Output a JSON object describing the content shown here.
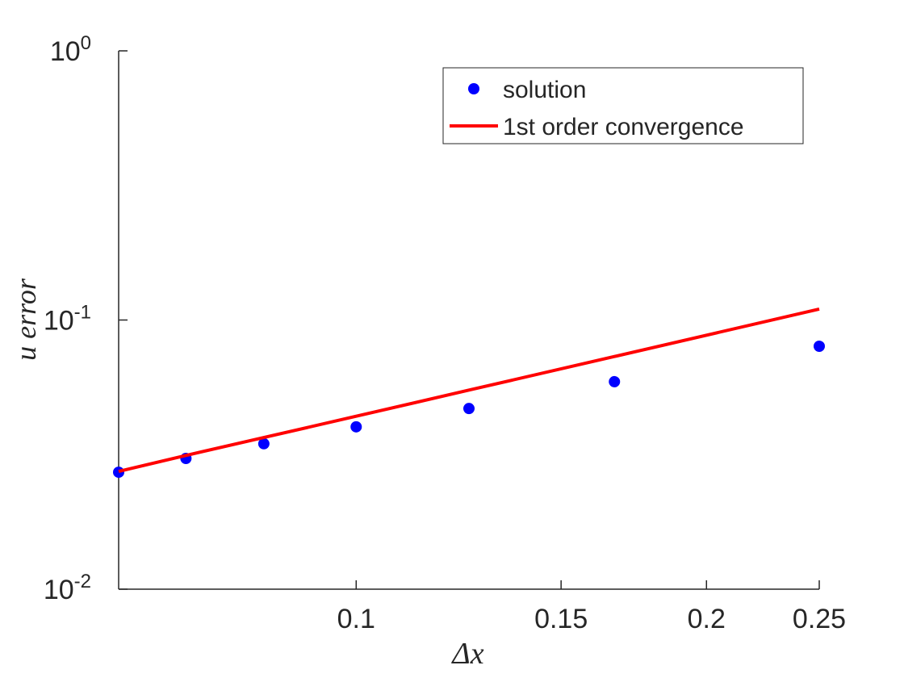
{
  "chart_data": {
    "type": "line",
    "x_label": "Δx",
    "y_label": "u error",
    "x": [
      0.0625,
      0.0714,
      0.0833,
      0.1,
      0.125,
      0.1667,
      0.25
    ],
    "series": [
      {
        "name": "solution",
        "color": "#0000ff",
        "marker": "dot",
        "values": [
          0.0272,
          0.0306,
          0.0347,
          0.0401,
          0.0469,
          0.059,
          0.0799
        ]
      },
      {
        "name": "1st order convergence",
        "color": "#ff0000",
        "marker": "line",
        "values": [
          0.0274,
          0.0314,
          0.0366,
          0.0439,
          0.0549,
          0.0732,
          0.1098
        ]
      }
    ],
    "xlim": [
      0.0625,
      0.25
    ],
    "ylim": [
      0.01,
      1
    ],
    "xticks": [
      0.1,
      0.15,
      0.2,
      0.25
    ],
    "yticks": [
      {
        "value": 0.01,
        "label": "10",
        "exponent": "-2"
      },
      {
        "value": 0.1,
        "label": "10",
        "exponent": "-1"
      },
      {
        "value": 1,
        "label": "10",
        "exponent": "0"
      }
    ],
    "xscale": "log",
    "yscale": "log",
    "legend": "top-right"
  }
}
